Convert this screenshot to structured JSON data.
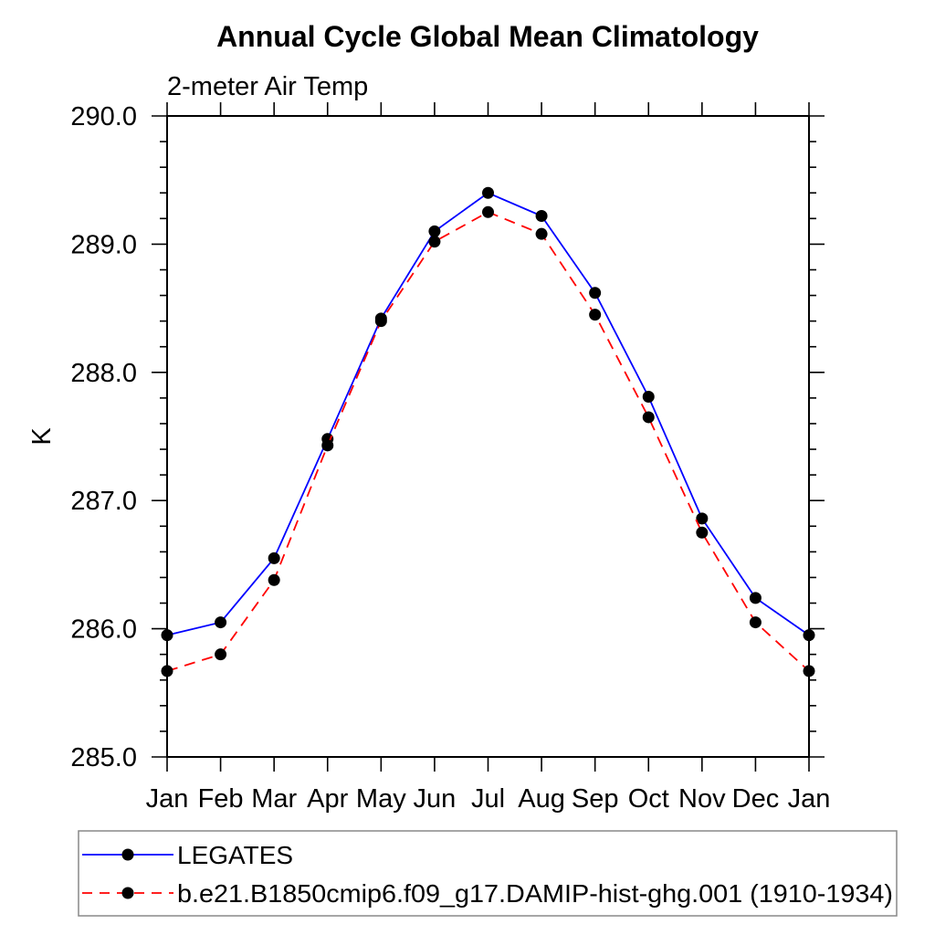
{
  "chart_data": {
    "type": "line",
    "title": "Annual Cycle Global Mean Climatology",
    "subtitle": "2-meter Air Temp",
    "xlabel": "",
    "ylabel": "K",
    "ylim": [
      285.0,
      290.0
    ],
    "ytick_major_step": 1.0,
    "ytick_minor_step": 0.2,
    "ytick_labels": [
      "285.0",
      "286.0",
      "287.0",
      "288.0",
      "289.0",
      "290.0"
    ],
    "categories": [
      "Jan",
      "Feb",
      "Mar",
      "Apr",
      "May",
      "Jun",
      "Jul",
      "Aug",
      "Sep",
      "Oct",
      "Nov",
      "Dec",
      "Jan"
    ],
    "grid": false,
    "legend_position": "boxed-below-plot",
    "frame_color": "#000000",
    "legend_border_color": "#888888",
    "marker_shape": "filled-circle",
    "marker_color": "#000000",
    "series": [
      {
        "name": "LEGATES",
        "color": "#0000ff",
        "line_style": "solid",
        "values": [
          285.95,
          286.05,
          286.55,
          287.48,
          288.42,
          289.1,
          289.4,
          289.22,
          288.62,
          287.81,
          286.86,
          286.24,
          285.95
        ]
      },
      {
        "name": "b.e21.B1850cmip6.f09_g17.DAMIP-hist-ghg.001 (1910-1934)",
        "color": "#ff0000",
        "line_style": "dashed",
        "values": [
          285.67,
          285.8,
          286.38,
          287.43,
          288.4,
          289.02,
          289.25,
          289.08,
          288.45,
          287.65,
          286.75,
          286.05,
          285.67
        ]
      }
    ]
  }
}
